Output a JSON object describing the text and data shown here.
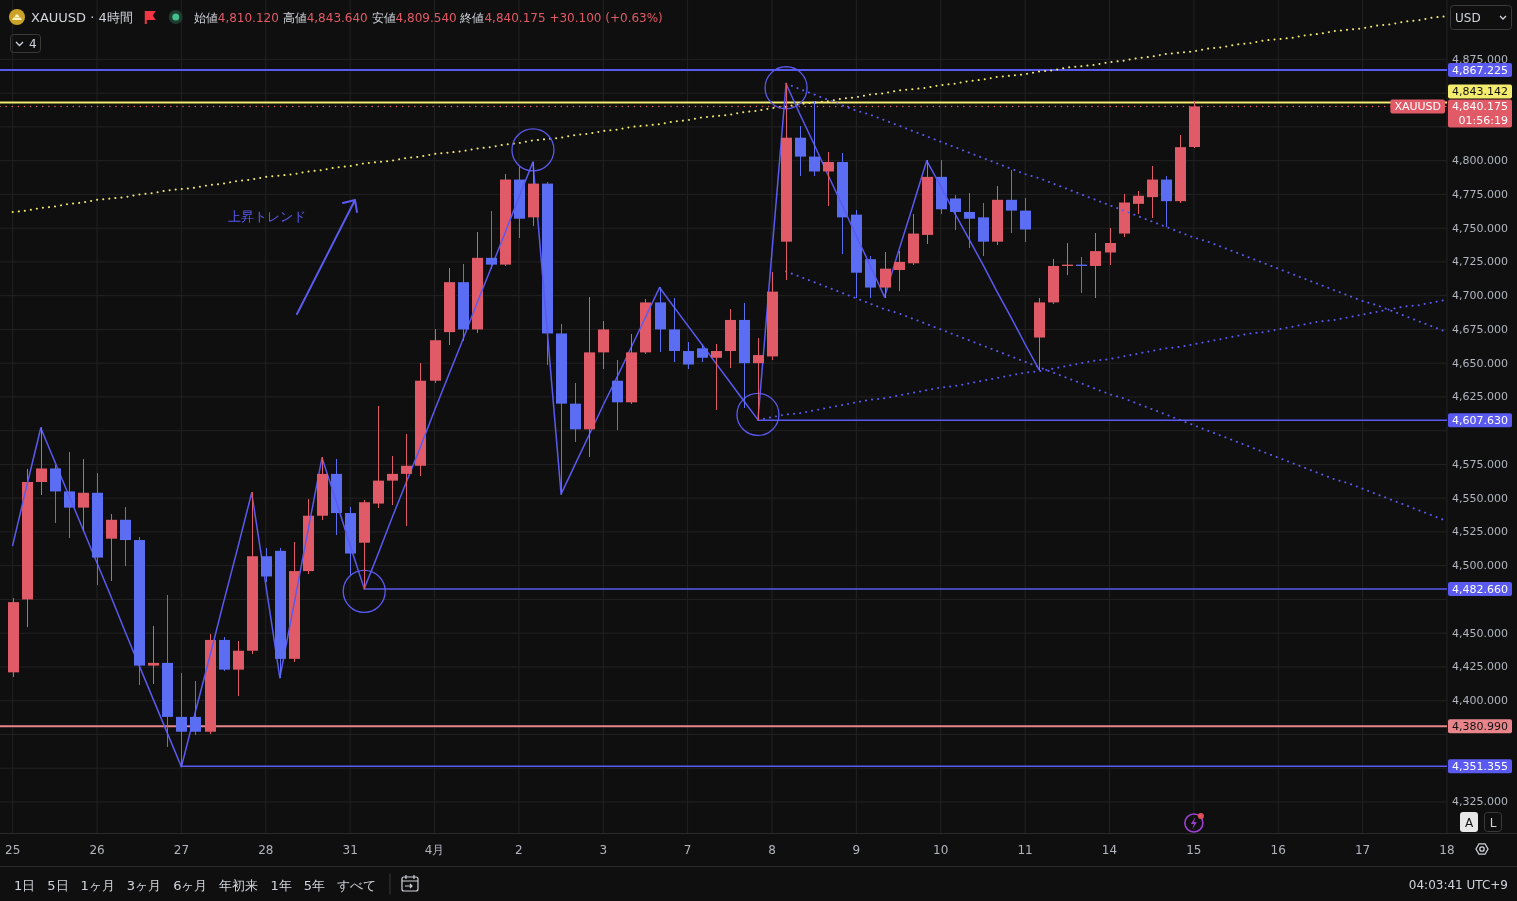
{
  "chart_data": {
    "type": "candlestick",
    "title": "XAUUSD · 4時間",
    "subtitle": "始値4,810.120 高値4,843.640 安値4,809.540 終値4,840.175 +30.100 (+0.63%)",
    "categories": [
      "25",
      null,
      null,
      null,
      null,
      null,
      "26",
      null,
      null,
      null,
      null,
      null,
      "27",
      null,
      null,
      null,
      null,
      null,
      "28",
      null,
      null,
      null,
      null,
      null,
      "31",
      null,
      null,
      null,
      null,
      null,
      "4月",
      null,
      null,
      null,
      null,
      null,
      "2",
      null,
      null,
      null,
      null,
      null,
      "3",
      null,
      null,
      null,
      null,
      null,
      "7",
      null,
      null,
      null,
      null,
      null,
      "8",
      null,
      null,
      null,
      null,
      null,
      "9",
      null,
      null,
      null,
      null,
      null,
      "10",
      null,
      null,
      null,
      null,
      null,
      "11",
      null,
      null,
      null,
      null,
      null,
      "14",
      null,
      null,
      null,
      null,
      null,
      "15",
      null,
      null,
      null,
      null,
      null,
      "16",
      null,
      null,
      null,
      null,
      null,
      "17",
      null,
      null,
      null,
      null,
      null,
      "18"
    ],
    "ohlc": [
      [
        4421,
        4476,
        4418,
        4473
      ],
      [
        4475,
        4571,
        4455,
        4562
      ],
      [
        4562,
        4602,
        4553,
        4572
      ],
      [
        4572,
        4574,
        4532,
        4555
      ],
      [
        4555,
        4584,
        4521,
        4543
      ],
      [
        4543,
        4579,
        4526,
        4554
      ],
      [
        4554,
        4568,
        4486,
        4506
      ],
      [
        4520,
        4538,
        4489,
        4534
      ],
      [
        4534,
        4543,
        4500,
        4519
      ],
      [
        4519,
        4521,
        4412,
        4426
      ],
      [
        4426,
        4455,
        4413,
        4428
      ],
      [
        4428,
        4478,
        4366,
        4388
      ],
      [
        4388,
        4420,
        4351,
        4377
      ],
      [
        4388,
        4414,
        4375,
        4377
      ],
      [
        4377,
        4449,
        4376,
        4445
      ],
      [
        4445,
        4447,
        4422,
        4423
      ],
      [
        4423,
        4444,
        4404,
        4437
      ],
      [
        4437,
        4554,
        4435,
        4507
      ],
      [
        4507,
        4513,
        4488,
        4492
      ],
      [
        4511,
        4513,
        4417,
        4431
      ],
      [
        4431,
        4517,
        4429,
        4496
      ],
      [
        4496,
        4549,
        4494,
        4537
      ],
      [
        4537,
        4580,
        4534,
        4568
      ],
      [
        4568,
        4579,
        4523,
        4539
      ],
      [
        4539,
        4543,
        4493,
        4509
      ],
      [
        4517,
        4548,
        4483,
        4547
      ],
      [
        4546,
        4618,
        4543,
        4563
      ],
      [
        4563,
        4581,
        4545,
        4568
      ],
      [
        4568,
        4597,
        4530,
        4574
      ],
      [
        4574,
        4650,
        4567,
        4637
      ],
      [
        4637,
        4675,
        4636,
        4667
      ],
      [
        4673,
        4720,
        4664,
        4710
      ],
      [
        4710,
        4723,
        4667,
        4675
      ],
      [
        4675,
        4747,
        4673,
        4728
      ],
      [
        4728,
        4762,
        4720,
        4723
      ],
      [
        4723,
        4790,
        4722,
        4786
      ],
      [
        4786,
        4796,
        4743,
        4757
      ],
      [
        4758,
        4799,
        4752,
        4783
      ],
      [
        4783,
        4784,
        4649,
        4672
      ],
      [
        4672,
        4679,
        4553,
        4620
      ],
      [
        4620,
        4635,
        4592,
        4601
      ],
      [
        4601,
        4699,
        4581,
        4658
      ],
      [
        4658,
        4681,
        4646,
        4675
      ],
      [
        4637,
        4652,
        4601,
        4621
      ],
      [
        4621,
        4671,
        4620,
        4658
      ],
      [
        4658,
        4697,
        4657,
        4695
      ],
      [
        4695,
        4706,
        4659,
        4675
      ],
      [
        4675,
        4698,
        4651,
        4659
      ],
      [
        4659,
        4665,
        4646,
        4649
      ],
      [
        4661,
        4664,
        4651,
        4654
      ],
      [
        4654,
        4664,
        4616,
        4659
      ],
      [
        4659,
        4690,
        4647,
        4682
      ],
      [
        4682,
        4694,
        4617,
        4650
      ],
      [
        4650,
        4668,
        4608,
        4656
      ],
      [
        4655,
        4717,
        4653,
        4703
      ],
      [
        4740,
        4857,
        4712,
        4817
      ],
      [
        4817,
        4825,
        4789,
        4803
      ],
      [
        4803,
        4844,
        4789,
        4792
      ],
      [
        4792,
        4806,
        4767,
        4799
      ],
      [
        4799,
        4805,
        4731,
        4758
      ],
      [
        4760,
        4763,
        4699,
        4717
      ],
      [
        4727,
        4729,
        4699,
        4706
      ],
      [
        4706,
        4732,
        4699,
        4720
      ],
      [
        4719,
        4733,
        4704,
        4725
      ],
      [
        4724,
        4760,
        4723,
        4746
      ],
      [
        4745,
        4800,
        4739,
        4788
      ],
      [
        4788,
        4800,
        4761,
        4764
      ],
      [
        4772,
        4774,
        4749,
        4762
      ],
      [
        4762,
        4776,
        4736,
        4757
      ],
      [
        4758,
        4768,
        4730,
        4740
      ],
      [
        4740,
        4781,
        4738,
        4771
      ],
      [
        4771,
        4793,
        4747,
        4763
      ],
      [
        4763,
        4772,
        4740,
        4749
      ],
      [
        4669,
        4698,
        4645,
        4695
      ],
      [
        4695,
        4727,
        4694,
        4722
      ],
      [
        4722,
        4739,
        4716,
        4723
      ],
      [
        4723,
        4728,
        4702,
        4722
      ],
      [
        4722,
        4746,
        4699,
        4733
      ],
      [
        4732,
        4750,
        4723,
        4739
      ],
      [
        4746,
        4775,
        4744,
        4769
      ],
      [
        4768,
        4777,
        4761,
        4774
      ],
      [
        4773,
        4796,
        4758,
        4786
      ],
      [
        4786,
        4788,
        4751,
        4770
      ],
      [
        4770,
        4819,
        4769,
        4810
      ],
      [
        4810.12,
        4843.64,
        4809.54,
        4840.175
      ],
      null,
      null,
      null,
      null,
      null,
      null,
      null,
      null,
      null,
      null,
      null,
      null,
      null,
      null,
      null,
      null,
      null,
      null
    ],
    "colors": [
      "#e05b67",
      "#e05b67",
      "#e05b67",
      "#5b6df2",
      "#5b6df2",
      "#e05b67",
      "#5b6df2",
      "#e05b67",
      "#5b6df2",
      "#5b6df2",
      "#e05b67",
      "#5b6df2",
      "#5b6df2",
      "#5b6df2",
      "#e05b67",
      "#5b6df2",
      "#e05b67",
      "#e05b67",
      "#5b6df2",
      "#5b6df2",
      "#e05b67",
      "#e05b67",
      "#e05b67",
      "#5b6df2",
      "#5b6df2",
      "#e05b67",
      "#e05b67",
      "#e05b67",
      "#e05b67",
      "#e05b67",
      "#e05b67",
      "#e05b67",
      "#5b6df2",
      "#e05b67",
      "#5b6df2",
      "#e05b67",
      "#5b6df2",
      "#e05b67",
      "#5b6df2",
      "#5b6df2",
      "#5b6df2",
      "#e05b67",
      "#e05b67",
      "#5b6df2",
      "#e05b67",
      "#e05b67",
      "#5b6df2",
      "#5b6df2",
      "#5b6df2",
      "#5b6df2",
      "#e05b67",
      "#e05b67",
      "#5b6df2",
      "#e05b67",
      "#e05b67",
      "#e05b67",
      "#5b6df2",
      "#5b6df2",
      "#e05b67",
      "#5b6df2",
      "#5b6df2",
      "#5b6df2",
      "#e05b67",
      "#e05b67",
      "#e05b67",
      "#e05b67",
      "#5b6df2",
      "#5b6df2",
      "#5b6df2",
      "#5b6df2",
      "#e05b67",
      "#5b6df2",
      "#5b6df2",
      "#e05b67",
      "#e05b67",
      "#e05b67",
      "#5b6df2",
      "#e05b67",
      "#e05b67",
      "#e05b67",
      "#e05b67",
      "#e05b67",
      "#5b6df2",
      "#e05b67",
      "#e05b67",
      null,
      null,
      null,
      null,
      null,
      null,
      null,
      null,
      null,
      null,
      null,
      null,
      null,
      null,
      null,
      null,
      null,
      null
    ],
    "series": [
      {
        "type": "line",
        "color": "#f0e86a",
        "line_style": "dotted",
        "values": [
          4762,
          4763,
          4765,
          4766,
          4768,
          4769,
          4771,
          4772,
          4773,
          4775,
          4776,
          4778,
          4779,
          4780,
          4782,
          4783,
          4785,
          4786,
          4788,
          4789,
          4790,
          4792,
          4793,
          4795,
          4796,
          4798,
          4799,
          4800,
          4802,
          4803,
          4805,
          4806,
          4807,
          4809,
          4810,
          4812,
          4813,
          4815,
          4816,
          4817,
          4819,
          4820,
          4822,
          4823,
          4825,
          4826,
          4827,
          4829,
          4830,
          4832,
          4833,
          4834,
          4836,
          4837,
          4839,
          4840,
          4842,
          4843,
          4844,
          4846,
          4847,
          4849,
          4850,
          4852,
          4853,
          4854,
          4856,
          4857,
          4859,
          4860,
          4862,
          4863,
          4864,
          4866,
          4867,
          4869,
          4870,
          4871,
          4873,
          4874,
          4876,
          4877,
          4879,
          4880,
          4881,
          4883,
          4884,
          4886,
          4887,
          4889,
          4890,
          4891,
          4893,
          4894,
          4896,
          4897,
          4898,
          4900,
          4901,
          4903,
          4904,
          4906,
          4907
        ]
      },
      {
        "type": "line",
        "color": "#5a5af0",
        "line_style": "dotted",
        "values": [
          null,
          null,
          null,
          null,
          null,
          null,
          null,
          null,
          null,
          null,
          null,
          null,
          null,
          null,
          null,
          null,
          null,
          null,
          null,
          null,
          null,
          null,
          null,
          null,
          null,
          null,
          null,
          null,
          null,
          null,
          null,
          null,
          null,
          null,
          null,
          null,
          null,
          null,
          null,
          null,
          null,
          null,
          null,
          null,
          null,
          null,
          null,
          null,
          null,
          null,
          null,
          null,
          null,
          null,
          null,
          4857,
          4853,
          4849,
          4845,
          4841,
          4837,
          4834,
          4830,
          4826,
          4822,
          4818,
          4814,
          4810,
          4806,
          4802,
          4798,
          4794,
          4790,
          4787,
          4783,
          4779,
          4775,
          4771,
          4767,
          4763,
          4759,
          4755,
          4751,
          4747,
          4743,
          4740,
          4736,
          4732,
          4728,
          4724,
          4720,
          4716,
          4712,
          4708,
          4704,
          4700,
          4696,
          4693,
          4689,
          4685,
          4681,
          4677,
          4673
        ]
      },
      {
        "type": "line",
        "color": "#5a5af0",
        "line_style": "dotted",
        "values": [
          null,
          null,
          null,
          null,
          null,
          null,
          null,
          null,
          null,
          null,
          null,
          null,
          null,
          null,
          null,
          null,
          null,
          null,
          null,
          null,
          null,
          null,
          null,
          null,
          null,
          null,
          null,
          null,
          null,
          null,
          null,
          null,
          null,
          null,
          null,
          null,
          null,
          null,
          null,
          null,
          null,
          null,
          null,
          null,
          null,
          null,
          null,
          null,
          null,
          null,
          null,
          null,
          null,
          null,
          null,
          4718,
          4714,
          4710,
          4706,
          4702,
          4698,
          4694,
          4690,
          4687,
          4683,
          4679,
          4675,
          4671,
          4667,
          4663,
          4659,
          4655,
          4651,
          4647,
          4643,
          4639,
          4635,
          4631,
          4627,
          4624,
          4620,
          4616,
          4612,
          4608,
          4604,
          4600,
          4596,
          4592,
          4588,
          4584,
          4580,
          4576,
          4572,
          4568,
          4564,
          4561,
          4557,
          4553,
          4549,
          4545,
          4541,
          4537,
          4533
        ]
      },
      {
        "type": "line",
        "color": "#5a5af0",
        "line_style": "dotted",
        "values": [
          null,
          null,
          null,
          null,
          null,
          null,
          null,
          null,
          null,
          null,
          null,
          null,
          null,
          null,
          null,
          null,
          null,
          null,
          null,
          null,
          null,
          null,
          null,
          null,
          null,
          null,
          null,
          null,
          null,
          null,
          null,
          null,
          null,
          null,
          null,
          null,
          null,
          null,
          null,
          null,
          null,
          null,
          null,
          null,
          null,
          null,
          null,
          null,
          null,
          null,
          null,
          null,
          null,
          4608,
          4610,
          4612,
          4613,
          4615,
          4617,
          4619,
          4621,
          4623,
          4624,
          4626,
          4628,
          4630,
          4632,
          4633,
          4635,
          4637,
          4639,
          4641,
          4643,
          4644,
          4646,
          4648,
          4650,
          4652,
          4653,
          4655,
          4657,
          4659,
          4661,
          4662,
          4664,
          4666,
          4668,
          4670,
          4672,
          4673,
          4675,
          4677,
          4679,
          4681,
          4682,
          4684,
          4686,
          4688,
          4690,
          4692,
          4693,
          4695,
          4697
        ]
      },
      {
        "type": "line",
        "color": "#5a5af0",
        "line_style": "solid",
        "values": [
          4515,
          4559,
          4602,
          4577,
          4552,
          4527,
          4502,
          4477,
          4451,
          4426,
          4401,
          4376,
          4351,
          4392,
          4432,
          4473,
          4513,
          4554,
          4486,
          4417,
          4471,
          4526,
          4580,
          4548,
          4515,
          4483,
          4509,
          4536,
          4562,
          4588,
          4615,
          4641,
          4667,
          4694,
          4720,
          4746,
          4773,
          4799,
          4676,
          4553,
          4575,
          4597,
          4619,
          4640,
          4662,
          4684,
          4706,
          4692,
          4678,
          4664,
          4650,
          4636,
          4622,
          4608,
          4733,
          4857,
          4834,
          4812,
          4789,
          4767,
          4744,
          4722,
          4699,
          4733,
          4766,
          4800,
          4781,
          4761,
          4742,
          4723,
          4703,
          4684,
          4664,
          4645,
          null,
          null,
          null,
          null,
          null,
          null,
          null,
          null,
          null,
          null,
          null,
          null,
          null,
          null,
          null,
          null,
          null,
          null,
          null,
          null,
          null,
          null,
          null,
          null,
          null,
          null,
          null,
          null,
          null
        ]
      },
      {
        "type": "line",
        "color": "#5a5af0",
        "line_style": "solid",
        "values": [
          null,
          null,
          null,
          null,
          null,
          null,
          null,
          null,
          null,
          null,
          null,
          null,
          null,
          null,
          null,
          null,
          null,
          null,
          null,
          null,
          null,
          null,
          null,
          null,
          null,
          null,
          null,
          null,
          null,
          null,
          null,
          null,
          null,
          null,
          null,
          null,
          null,
          null,
          null,
          null,
          null,
          null,
          null,
          null,
          null,
          null,
          null,
          null,
          null,
          null,
          null,
          null,
          null,
          4607.63,
          4607.63,
          4607.63,
          4607.63,
          4607.63,
          4607.63,
          4607.63,
          4607.63,
          4607.63,
          4607.63,
          4607.63,
          4607.63,
          4607.63,
          4607.63,
          4607.63,
          4607.63,
          4607.63,
          4607.63,
          4607.63,
          4607.63,
          4607.63,
          4607.63,
          4607.63,
          4607.63,
          4607.63,
          4607.63,
          4607.63,
          4607.63,
          4607.63,
          4607.63,
          4607.63,
          4607.63,
          4607.63,
          4607.63,
          4607.63,
          4607.63,
          4607.63,
          4607.63,
          4607.63,
          4607.63,
          4607.63,
          4607.63,
          4607.63,
          4607.63,
          4607.63,
          4607.63,
          4607.63,
          4607.63,
          4607.63,
          4607.63
        ],
        "value_labels": [
          null,
          null,
          null,
          null,
          null,
          null,
          null,
          null,
          null,
          null,
          null,
          null,
          null,
          null,
          null,
          null,
          null,
          null,
          null,
          null,
          null,
          null,
          null,
          null,
          null,
          null,
          null,
          null,
          null,
          null,
          null,
          null,
          null,
          null,
          null,
          null,
          null,
          null,
          null,
          null,
          null,
          null,
          null,
          null,
          null,
          null,
          null,
          null,
          null,
          null,
          null,
          null,
          null,
          null,
          null,
          null,
          null,
          null,
          null,
          null,
          null,
          null,
          null,
          null,
          null,
          null,
          null,
          null,
          null,
          null,
          null,
          null,
          null,
          null,
          null,
          null,
          null,
          null,
          null,
          null,
          null,
          null,
          null,
          null,
          null,
          null,
          null,
          null,
          null,
          null,
          null,
          null,
          null,
          null,
          null,
          null,
          null,
          null,
          null,
          null,
          null,
          null,
          "4,607.630"
        ]
      },
      {
        "type": "line",
        "color": "#5a5af0",
        "line_style": "solid",
        "values": [
          null,
          null,
          null,
          null,
          null,
          null,
          null,
          null,
          null,
          null,
          null,
          null,
          null,
          null,
          null,
          null,
          null,
          null,
          null,
          null,
          null,
          null,
          null,
          null,
          null,
          4482.66,
          4482.66,
          4482.66,
          4482.66,
          4482.66,
          4482.66,
          4482.66,
          4482.66,
          4482.66,
          4482.66,
          4482.66,
          4482.66,
          4482.66,
          4482.66,
          4482.66,
          4482.66,
          4482.66,
          4482.66,
          4482.66,
          4482.66,
          4482.66,
          4482.66,
          4482.66,
          4482.66,
          4482.66,
          4482.66,
          4482.66,
          4482.66,
          4482.66,
          4482.66,
          4482.66,
          4482.66,
          4482.66,
          4482.66,
          4482.66,
          4482.66,
          4482.66,
          4482.66,
          4482.66,
          4482.66,
          4482.66,
          4482.66,
          4482.66,
          4482.66,
          4482.66,
          4482.66,
          4482.66,
          4482.66,
          4482.66,
          4482.66,
          4482.66,
          4482.66,
          4482.66,
          4482.66,
          4482.66,
          4482.66,
          4482.66,
          4482.66,
          4482.66,
          4482.66,
          4482.66,
          4482.66,
          4482.66,
          4482.66,
          4482.66,
          4482.66,
          4482.66,
          4482.66,
          4482.66,
          4482.66,
          4482.66,
          4482.66,
          4482.66,
          4482.66,
          4482.66,
          4482.66,
          4482.66,
          4482.66
        ],
        "value_labels": [
          null,
          null,
          null,
          null,
          null,
          null,
          null,
          null,
          null,
          null,
          null,
          null,
          null,
          null,
          null,
          null,
          null,
          null,
          null,
          null,
          null,
          null,
          null,
          null,
          null,
          null,
          null,
          null,
          null,
          null,
          null,
          null,
          null,
          null,
          null,
          null,
          null,
          null,
          null,
          null,
          null,
          null,
          null,
          null,
          null,
          null,
          null,
          null,
          null,
          null,
          null,
          null,
          null,
          null,
          null,
          null,
          null,
          null,
          null,
          null,
          null,
          null,
          null,
          null,
          null,
          null,
          null,
          null,
          null,
          null,
          null,
          null,
          null,
          null,
          null,
          null,
          null,
          null,
          null,
          null,
          null,
          null,
          null,
          null,
          null,
          null,
          null,
          null,
          null,
          null,
          null,
          null,
          null,
          null,
          null,
          null,
          null,
          null,
          null,
          null,
          null,
          null,
          "4,482.660"
        ]
      },
      {
        "type": "line",
        "color": "#5a5af0",
        "line_style": "solid",
        "values": [
          null,
          null,
          null,
          null,
          null,
          null,
          null,
          null,
          null,
          null,
          null,
          null,
          4351.355,
          4351.355,
          4351.355,
          4351.355,
          4351.355,
          4351.355,
          4351.355,
          4351.355,
          4351.355,
          4351.355,
          4351.355,
          4351.355,
          4351.355,
          4351.355,
          4351.355,
          4351.355,
          4351.355,
          4351.355,
          4351.355,
          4351.355,
          4351.355,
          4351.355,
          4351.355,
          4351.355,
          4351.355,
          4351.355,
          4351.355,
          4351.355,
          4351.355,
          4351.355,
          4351.355,
          4351.355,
          4351.355,
          4351.355,
          4351.355,
          4351.355,
          4351.355,
          4351.355,
          4351.355,
          4351.355,
          4351.355,
          4351.355,
          4351.355,
          4351.355,
          4351.355,
          4351.355,
          4351.355,
          4351.355,
          4351.355,
          4351.355,
          4351.355,
          4351.355,
          4351.355,
          4351.355,
          4351.355,
          4351.355,
          4351.355,
          4351.355,
          4351.355,
          4351.355,
          4351.355,
          4351.355,
          4351.355,
          4351.355,
          4351.355,
          4351.355,
          4351.355,
          4351.355,
          4351.355,
          4351.355,
          4351.355,
          4351.355,
          4351.355,
          4351.355,
          4351.355,
          4351.355,
          4351.355,
          4351.355,
          4351.355,
          4351.355,
          4351.355,
          4351.355,
          4351.355,
          4351.355,
          4351.355,
          4351.355,
          4351.355,
          4351.355,
          4351.355,
          4351.355,
          4351.355
        ],
        "value_labels": [
          null,
          null,
          null,
          null,
          null,
          null,
          null,
          null,
          null,
          null,
          null,
          null,
          null,
          null,
          null,
          null,
          null,
          null,
          null,
          null,
          null,
          null,
          null,
          null,
          null,
          null,
          null,
          null,
          null,
          null,
          null,
          null,
          null,
          null,
          null,
          null,
          null,
          null,
          null,
          null,
          null,
          null,
          null,
          null,
          null,
          null,
          null,
          null,
          null,
          null,
          null,
          null,
          null,
          null,
          null,
          null,
          null,
          null,
          null,
          null,
          null,
          null,
          null,
          null,
          null,
          null,
          null,
          null,
          null,
          null,
          null,
          null,
          null,
          null,
          null,
          null,
          null,
          null,
          null,
          null,
          null,
          null,
          null,
          null,
          null,
          null,
          null,
          null,
          null,
          null,
          null,
          null,
          null,
          null,
          null,
          null,
          null,
          null,
          null,
          null,
          null,
          null,
          "4,351.355"
        ]
      },
      {
        "type": "scatter",
        "color": "#5a5af0",
        "marker": "circle",
        "values": [
          null,
          null,
          null,
          null,
          null,
          null,
          null,
          null,
          null,
          null,
          null,
          null,
          null,
          null,
          null,
          null,
          null,
          null,
          null,
          null,
          null,
          null,
          null,
          null,
          null,
          4481,
          null,
          null,
          null,
          null,
          null,
          null,
          null,
          null,
          null,
          null,
          null,
          4808,
          null,
          null,
          null,
          null,
          null,
          null,
          null,
          null,
          null,
          null,
          null,
          null,
          null,
          null,
          null,
          4612,
          null,
          4854,
          null,
          null,
          null,
          null,
          null,
          null,
          null,
          null,
          null,
          null,
          null,
          null,
          null,
          null,
          null,
          null,
          null,
          null,
          null,
          null,
          null,
          null,
          null,
          null,
          null,
          null,
          null,
          null,
          null,
          null,
          null,
          null,
          null,
          null,
          null,
          null,
          null,
          null,
          null,
          null,
          null,
          null,
          null,
          null,
          null,
          null,
          null
        ]
      }
    ],
    "ref_lines": [
      {
        "axis": "y",
        "value": 4867.225,
        "label": "4,867.225",
        "color": "#5a5af0",
        "line_style": "solid"
      },
      {
        "axis": "y",
        "value": 4843.142,
        "label": "4,843.142",
        "color": "#f4ec6e",
        "line_style": "solid"
      },
      {
        "axis": "y",
        "value": 4840.175,
        "label": "4,840.175\n01:56:19",
        "color": "#e05b67",
        "line_style": "dotted"
      },
      {
        "axis": "y",
        "value": 4380.99,
        "label": "4,380.990",
        "color": "#e8858a",
        "line_style": "solid"
      }
    ],
    "annotations": [
      "上昇トレンド",
      {
        "text": "XAUUSD",
        "y": 4840.175
      },
      "4",
      "USD",
      "1日 5日 1ヶ月 3ヶ月 6ヶ月 年初来 1年 5年 すべて",
      "04:03:41 UTC+9",
      "A",
      "L"
    ],
    "ylim": [
      4302,
      4919
    ],
    "yticks": [
      {
        "value": 4325,
        "label": "4,325.000"
      },
      {
        "value": 4350,
        "label": null
      },
      {
        "value": 4375,
        "label": null
      },
      {
        "value": 4400,
        "label": "4,400.000"
      },
      {
        "value": 4425,
        "label": "4,425.000"
      },
      {
        "value": 4450,
        "label": "4,450.000"
      },
      {
        "value": 4475,
        "label": null
      },
      {
        "value": 4500,
        "label": "4,500.000"
      },
      {
        "value": 4525,
        "label": "4,525.000"
      },
      {
        "value": 4550,
        "label": "4,550.000"
      },
      {
        "value": 4575,
        "label": "4,575.000"
      },
      {
        "value": 4600,
        "label": null
      },
      {
        "value": 4625,
        "label": "4,625.000"
      },
      {
        "value": 4650,
        "label": "4,650.000"
      },
      {
        "value": 4675,
        "label": "4,675.000"
      },
      {
        "value": 4700,
        "label": "4,700.000"
      },
      {
        "value": 4725,
        "label": "4,725.000"
      },
      {
        "value": 4750,
        "label": "4,750.000"
      },
      {
        "value": 4775,
        "label": "4,775.000"
      },
      {
        "value": 4800,
        "label": "4,800.000"
      },
      {
        "value": 4825,
        "label": null
      },
      {
        "value": 4850,
        "label": null
      },
      {
        "value": 4875,
        "label": "4,875.000"
      }
    ],
    "grid": true
  }
}
